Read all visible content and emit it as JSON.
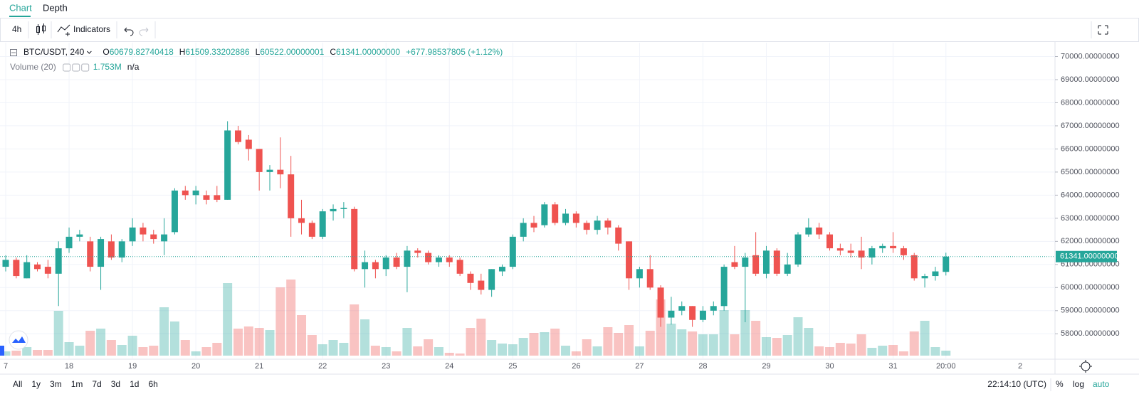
{
  "tabs": [
    "Chart",
    "Depth"
  ],
  "toolbar": {
    "interval": "4h",
    "indicators": "Indicators"
  },
  "chart_data": {
    "type": "candlestick",
    "legend": {
      "symbol": "BTC/USDT, 240",
      "open_prefix": "O",
      "open": "60679.82740418",
      "high_prefix": "H",
      "high": "61509.33202886",
      "low_prefix": "L",
      "low": "60522.00000001",
      "close_prefix": "C",
      "close": "61341.00000000",
      "change": "+677.98537805 (+1.12%)"
    },
    "volume_legend": {
      "name": "Volume (20)",
      "value": "1.753M",
      "extra": "n/a"
    },
    "last_price_label": "61341.00000000",
    "up_color": "#26a69a",
    "down_color": "#ef5350",
    "categories": [
      "7",
      null,
      null,
      null,
      null,
      null,
      "18",
      null,
      null,
      null,
      null,
      null,
      "19",
      null,
      null,
      null,
      null,
      null,
      "20",
      null,
      null,
      null,
      null,
      null,
      "21",
      null,
      null,
      null,
      null,
      null,
      "22",
      null,
      null,
      null,
      null,
      null,
      "23",
      null,
      null,
      null,
      null,
      null,
      "24",
      null,
      null,
      null,
      null,
      null,
      "25",
      null,
      null,
      null,
      null,
      null,
      "26",
      null,
      null,
      null,
      null,
      null,
      "27",
      null,
      null,
      null,
      null,
      null,
      "28",
      null,
      null,
      null,
      null,
      null,
      "29",
      null,
      null,
      null,
      null,
      null,
      "30",
      null,
      null,
      null,
      null,
      null,
      "31",
      null,
      null,
      null,
      null,
      "20:00"
    ],
    "open": [
      60900,
      61200,
      60400,
      61000,
      60900,
      60600,
      61700,
      62200,
      62000,
      60900,
      62000,
      61300,
      62000,
      62600,
      62300,
      62000,
      62400,
      64200,
      64000,
      64000,
      64000,
      63800,
      66800,
      66400,
      66000,
      65000,
      65100,
      64900,
      63000,
      62800,
      62200,
      63300,
      63400,
      63400,
      60800,
      61100,
      60800,
      61300,
      60900,
      61600,
      61500,
      61100,
      61300,
      61200,
      60600,
      60300,
      59900,
      60700,
      60900,
      62200,
      62800,
      62700,
      63600,
      62800,
      63200,
      62800,
      62500,
      62900,
      62600,
      62000,
      60400,
      60800,
      60000,
      58700,
      59000,
      59200,
      58600,
      59000,
      59200,
      61100,
      60900,
      61400,
      60600,
      61600,
      60600,
      61000,
      62300,
      62600,
      62300,
      61700,
      61600,
      61600,
      61300,
      61700,
      61800,
      61700,
      61400,
      60400,
      60500,
      60679.82740418
    ],
    "high": [
      61400,
      61300,
      61400,
      61100,
      61200,
      62000,
      62600,
      62500,
      62200,
      62200,
      62300,
      62100,
      63000,
      62800,
      62500,
      63000,
      64300,
      64400,
      64400,
      64200,
      64400,
      67200,
      67000,
      66600,
      66000,
      65300,
      66500,
      65700,
      63800,
      62900,
      63400,
      63600,
      63700,
      63500,
      61600,
      61200,
      61400,
      61500,
      61800,
      61700,
      61600,
      61400,
      61400,
      61300,
      60700,
      60600,
      60800,
      61000,
      62300,
      63000,
      63100,
      63700,
      63700,
      63400,
      63300,
      62900,
      63100,
      63000,
      62700,
      62000,
      60900,
      61400,
      60100,
      59600,
      59400,
      59200,
      59200,
      59400,
      61000,
      61800,
      61500,
      62400,
      61800,
      61700,
      61500,
      62400,
      63000,
      62800,
      62400,
      61900,
      61900,
      62200,
      61800,
      61900,
      62400,
      61800,
      61500,
      60600,
      60900,
      61509.33202886
    ],
    "low": [
      60700,
      60400,
      60400,
      60700,
      60400,
      59200,
      61500,
      62000,
      60700,
      59900,
      61200,
      61100,
      61800,
      62000,
      61900,
      61400,
      62300,
      63800,
      63600,
      63600,
      63700,
      63800,
      66200,
      65500,
      64200,
      64200,
      64300,
      62200,
      62300,
      62100,
      62100,
      62900,
      63000,
      60700,
      60000,
      60400,
      60500,
      60800,
      59800,
      61300,
      61000,
      60900,
      60900,
      60500,
      59900,
      59700,
      59600,
      60500,
      60800,
      62000,
      62400,
      62600,
      62700,
      62700,
      62600,
      62300,
      62300,
      62300,
      61600,
      59900,
      60000,
      59900,
      58300,
      58400,
      58800,
      58300,
      58500,
      58800,
      59000,
      60800,
      58500,
      60500,
      60400,
      60500,
      60500,
      60900,
      62200,
      62100,
      61600,
      61400,
      61300,
      60800,
      61000,
      61500,
      61500,
      61200,
      60300,
      60000,
      60300,
      60522.00000001
    ],
    "close": [
      61200,
      60500,
      61100,
      60800,
      60600,
      61700,
      62200,
      62300,
      60900,
      62100,
      61300,
      62000,
      62600,
      62300,
      62100,
      62300,
      64200,
      64000,
      64200,
      63800,
      63800,
      66800,
      66300,
      66000,
      65000,
      65100,
      64900,
      63000,
      62800,
      62200,
      63300,
      63400,
      63450,
      60800,
      61100,
      60800,
      61300,
      60900,
      61600,
      61500,
      61100,
      61300,
      61100,
      60600,
      60200,
      59900,
      60800,
      60900,
      62200,
      62800,
      62600,
      63600,
      62800,
      63200,
      62800,
      62500,
      62900,
      62600,
      61900,
      60400,
      60800,
      60000,
      58700,
      59000,
      59200,
      58600,
      59000,
      59200,
      60900,
      60900,
      61300,
      60600,
      61600,
      60600,
      61000,
      62300,
      62600,
      62300,
      61700,
      61600,
      61500,
      61300,
      61700,
      61800,
      61700,
      61400,
      60400,
      60500,
      60700,
      61341
    ],
    "volume": [
      1.5,
      1.75,
      3,
      2,
      2,
      15.75,
      4.75,
      3.5,
      8.75,
      9.5,
      5.5,
      3.75,
      7,
      3,
      3.5,
      17,
      12,
      5.5,
      1.5,
      3,
      4.5,
      25.5,
      9.5,
      10.25,
      9.75,
      9,
      24,
      26.75,
      14.25,
      7.25,
      4,
      5.5,
      4.5,
      18,
      12.75,
      3.5,
      3,
      1.5,
      9.75,
      3.25,
      5.75,
      3,
      1,
      0.75,
      9.75,
      13,
      5.5,
      4.25,
      4,
      6.25,
      8,
      8.25,
      9.5,
      3.5,
      1.5,
      5.75,
      3.25,
      10,
      8,
      10.75,
      3.25,
      8.75,
      19.75,
      11.25,
      9.25,
      8.5,
      7.5,
      7.5,
      16,
      7.5,
      16,
      12.25,
      6.5,
      6.25,
      7.25,
      13.5,
      9.75,
      3.25,
      3,
      4.5,
      4.25,
      7.5,
      2.75,
      3.5,
      3.75,
      1.5,
      8.5,
      12.25,
      3,
      1.753
    ],
    "ylim": [
      56900,
      70600
    ],
    "yticks": [
      {
        "value": 58000,
        "label": "58000.00000000"
      },
      {
        "value": 59000,
        "label": "59000.00000000"
      },
      {
        "value": 60000,
        "label": "60000.00000000"
      },
      {
        "value": 61000,
        "label": "61000.00000000"
      },
      {
        "value": 62000,
        "label": "62000.00000000"
      },
      {
        "value": 63000,
        "label": "63000.00000000"
      },
      {
        "value": 64000,
        "label": "64000.00000000"
      },
      {
        "value": 65000,
        "label": "65000.00000000"
      },
      {
        "value": 66000,
        "label": "66000.00000000"
      },
      {
        "value": 67000,
        "label": "67000.00000000"
      },
      {
        "value": 68000,
        "label": "68000.00000000"
      },
      {
        "value": 69000,
        "label": "69000.00000000"
      },
      {
        "value": 70000,
        "label": "70000.00000000"
      }
    ],
    "grid": true,
    "next_period_label": "2"
  },
  "footer": {
    "ranges": [
      "All",
      "1y",
      "3m",
      "1m",
      "7d",
      "3d",
      "1d",
      "6h"
    ],
    "clock": "22:14:10 (UTC)",
    "scale_buttons": [
      "%",
      "log",
      "auto"
    ]
  }
}
